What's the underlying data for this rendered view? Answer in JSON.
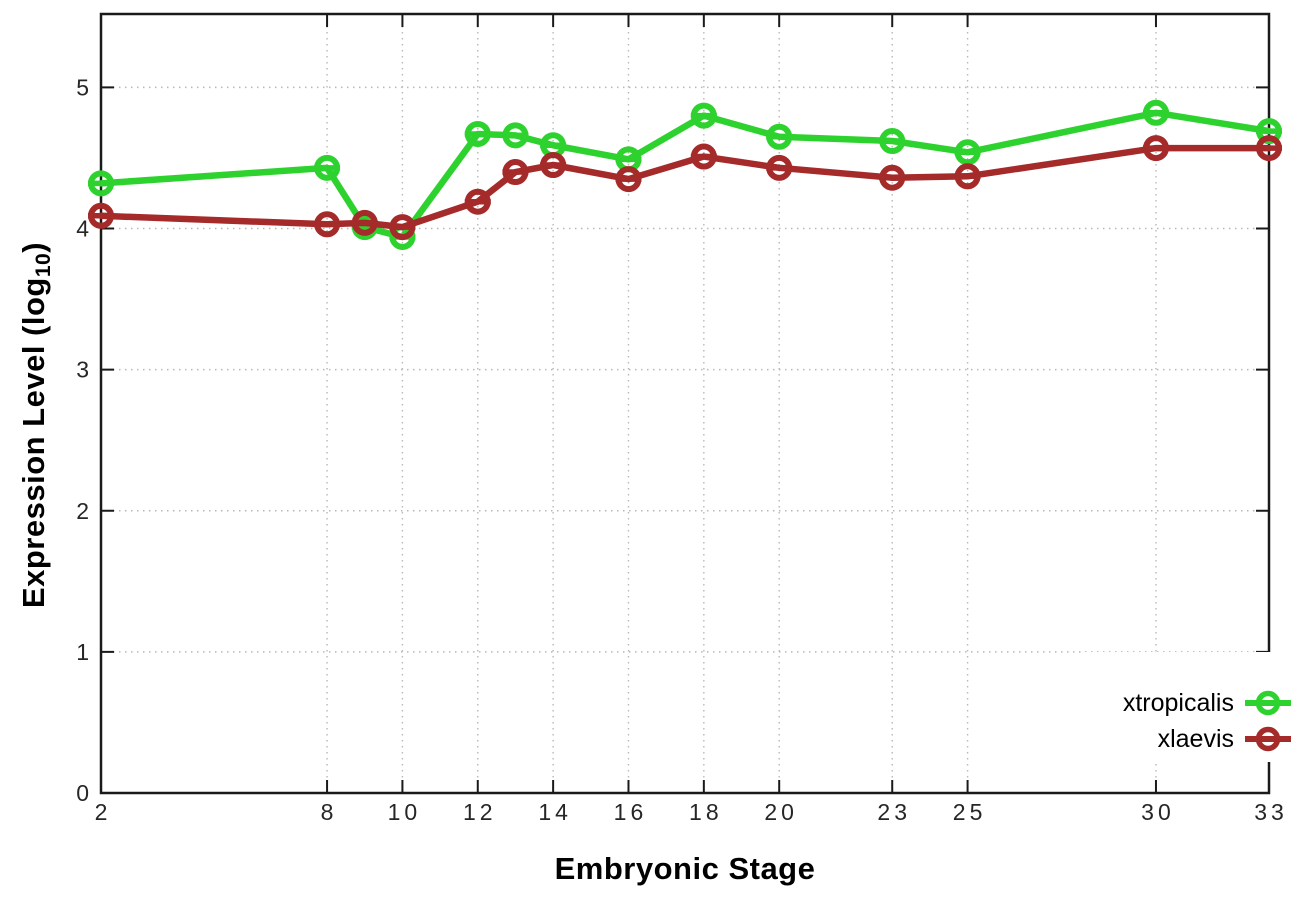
{
  "figure": {
    "background": "#ffffff",
    "axis_color": "#1a1a1a",
    "grid_color": "#b8b8b8",
    "tick_label_color": "#262626"
  },
  "labels": {
    "x_axis": "Embryonic Stage",
    "y_axis_main": "Expression Level (log",
    "y_axis_sub": "10",
    "y_axis_close": ")"
  },
  "chart_data": {
    "type": "line",
    "title": "",
    "xlabel": "Embryonic Stage",
    "ylabel": "Expression Level (log10)",
    "x": [
      2,
      8,
      9,
      10,
      12,
      13,
      14,
      16,
      18,
      20,
      23,
      25,
      30,
      33
    ],
    "xticks": [
      2,
      8,
      10,
      12,
      14,
      16,
      18,
      20,
      23,
      25,
      30,
      33
    ],
    "yticks": [
      0,
      1,
      2,
      3,
      4,
      5
    ],
    "xlim": [
      2,
      33
    ],
    "ylim": [
      0,
      5.52
    ],
    "grid": true,
    "marker": "open-circle-with-horizontal-bar",
    "legend_position": "bottom-right",
    "series": [
      {
        "name": "xtropicalis",
        "color": "#2ed22e",
        "values": [
          4.32,
          4.43,
          4.01,
          3.94,
          4.67,
          4.66,
          4.59,
          4.49,
          4.8,
          4.65,
          4.62,
          4.54,
          4.82,
          4.69
        ]
      },
      {
        "name": "xlaevis",
        "color": "#a52a2a",
        "values": [
          4.09,
          4.03,
          4.04,
          4.01,
          4.19,
          4.4,
          4.45,
          4.35,
          4.51,
          4.43,
          4.36,
          4.37,
          4.57,
          4.57
        ]
      }
    ]
  }
}
